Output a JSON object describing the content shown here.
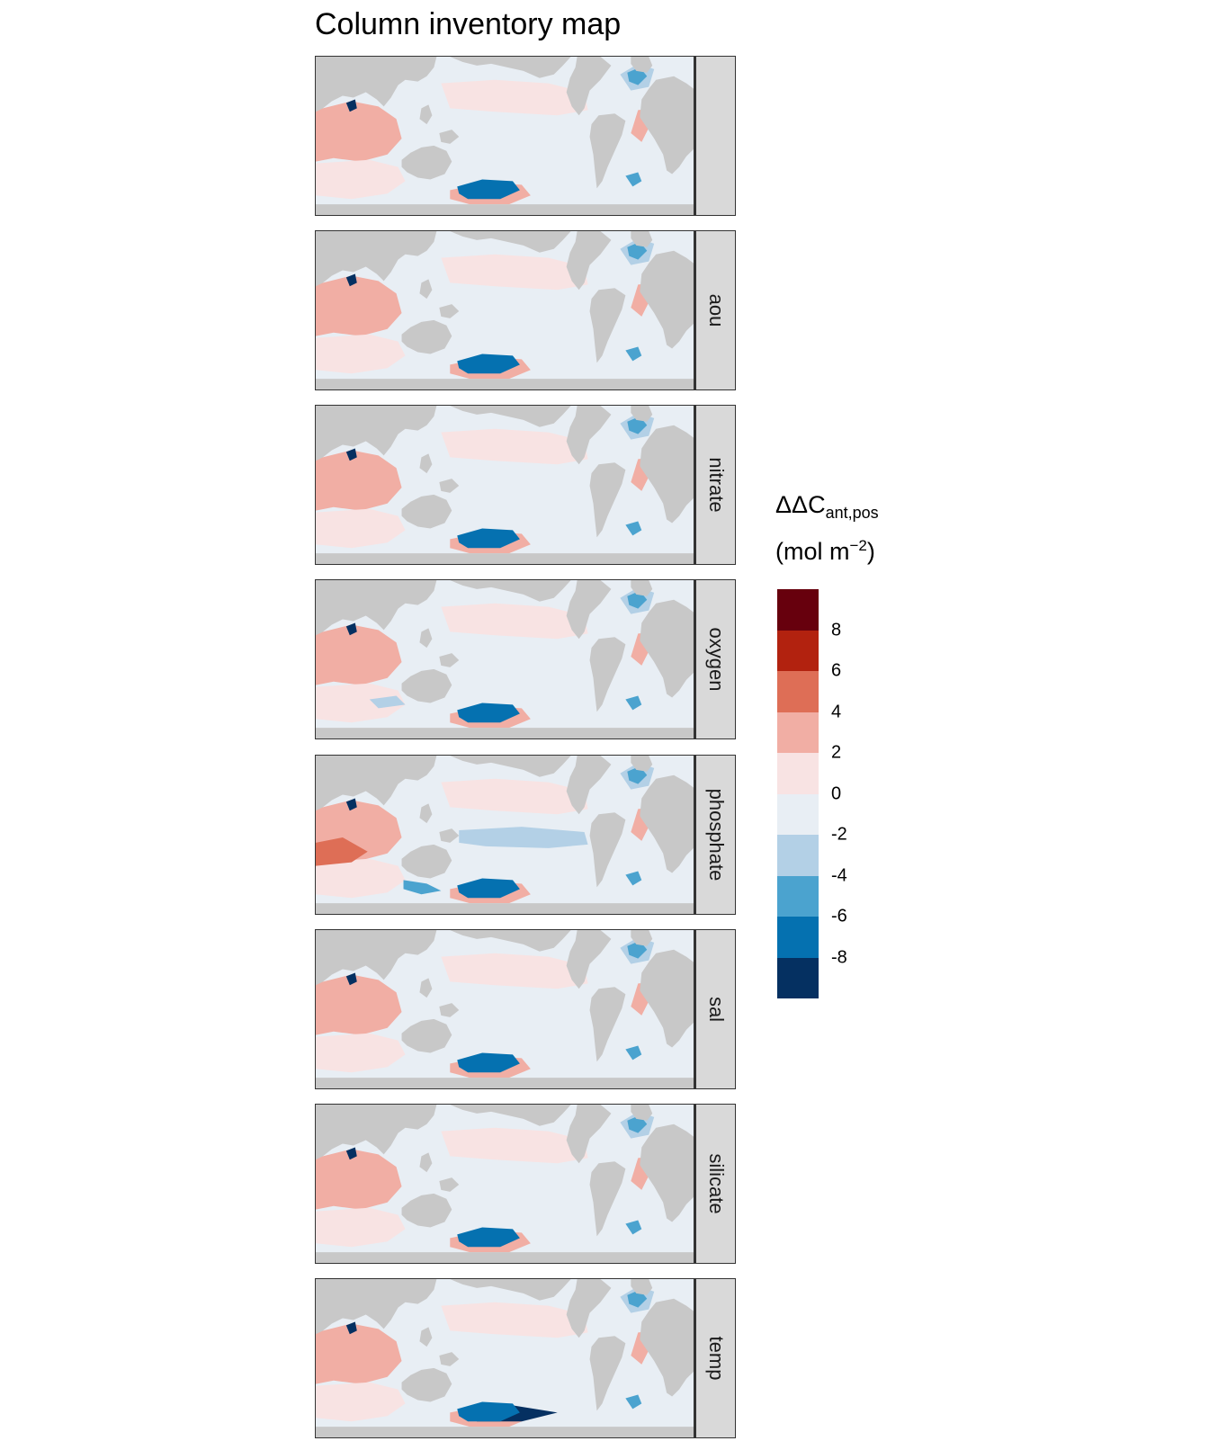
{
  "title": "Column inventory map",
  "chart_data": {
    "type": "heatmap",
    "title": "Column inventory map",
    "map_type": "global ocean map, faceted by predictor set",
    "facets": [
      "",
      "aou",
      "nitrate",
      "oxygen",
      "phosphate",
      "sal",
      "silicate",
      "temp"
    ],
    "legend": {
      "title": "ΔΔC",
      "title_subscript": "ant,pos",
      "unit": "(mol m",
      "unit_superscript": "−2",
      "unit_close": ")",
      "position": "right",
      "breaks": [
        8,
        6,
        4,
        2,
        0,
        -2,
        -4,
        -6,
        -8
      ],
      "bin_colors": [
        "#67000d",
        "#b2220f",
        "#de6e56",
        "#f1aea4",
        "#f8e3e3",
        "#e8eef4",
        "#b3d0e6",
        "#4ba3cf",
        "#0571b0",
        "#053061"
      ]
    },
    "land_color": "#c8c8c8"
  }
}
